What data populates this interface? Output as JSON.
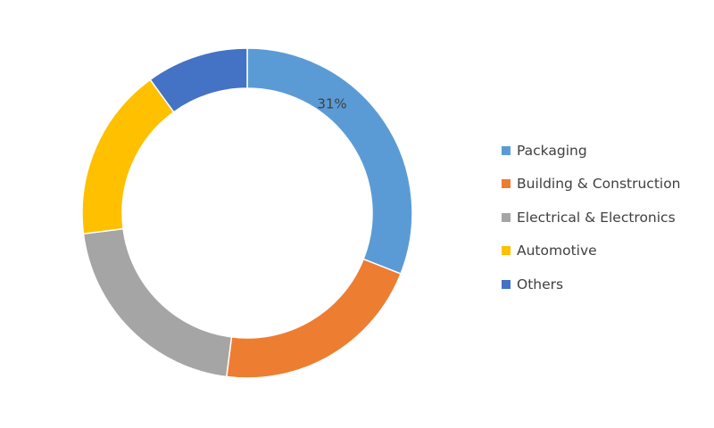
{
  "chart_data": {
    "type": "pie",
    "variant": "donut",
    "categories": [
      "Packaging",
      "Building & Construction",
      "Electrical & Electronics",
      "Automotive",
      "Others"
    ],
    "values": [
      31,
      21,
      21,
      17,
      10
    ],
    "colors": [
      "#5B9BD5",
      "#ED7D31",
      "#A5A5A5",
      "#FFC000",
      "#4472C4"
    ],
    "data_labels": [
      "31%",
      null,
      null,
      null,
      null
    ],
    "title": "",
    "legend_position": "right"
  }
}
